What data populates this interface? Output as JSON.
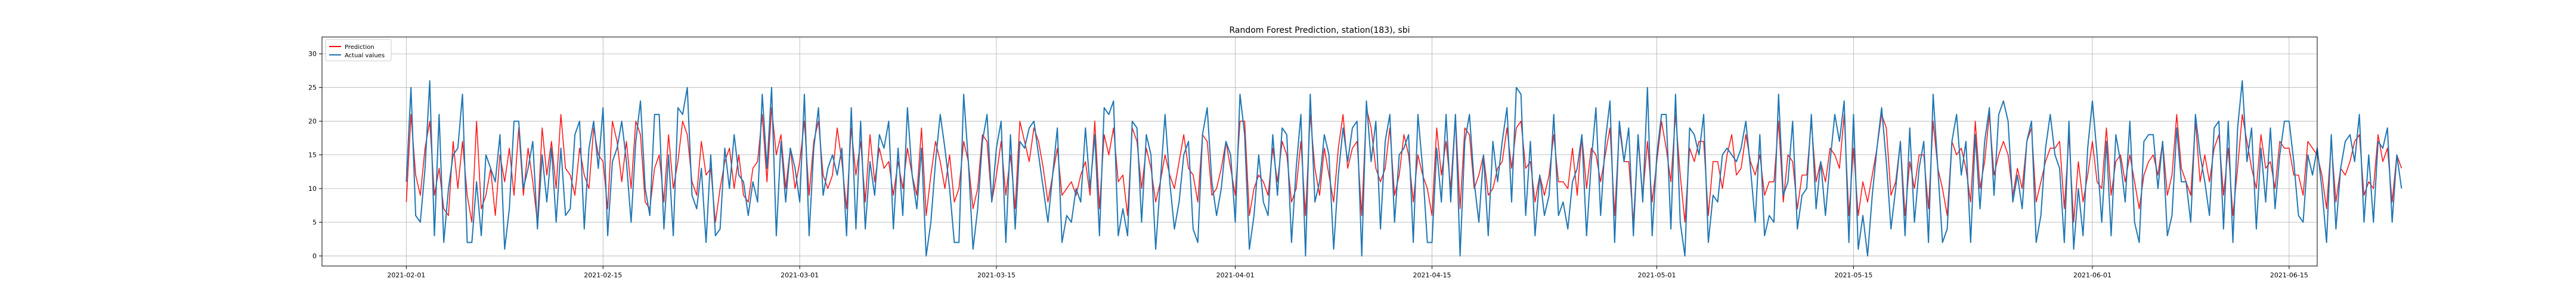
{
  "figure": {
    "title": "Random Forest Prediction, station(183), sbi"
  },
  "chart_data": {
    "type": "line",
    "title": "Random Forest Prediction, station(183), sbi",
    "xlabel": "",
    "ylabel": "",
    "x_range": [
      "2021-01-26",
      "2021-06-17"
    ],
    "xticks": [
      "2021-02-01",
      "2021-02-15",
      "2021-03-01",
      "2021-03-15",
      "2021-04-01",
      "2021-04-15",
      "2021-05-01",
      "2021-05-15",
      "2021-06-01",
      "2021-06-15"
    ],
    "ylim": [
      -1.5,
      32.5
    ],
    "yticks": [
      0,
      5,
      10,
      15,
      20,
      25,
      30
    ],
    "grid": true,
    "legend": "upper-left",
    "sampling": "every 8 hours",
    "start": "2021-02-01",
    "series": [
      {
        "name": "Prediction",
        "color": "#ff0000",
        "values": [
          8,
          21,
          12,
          9,
          16,
          20,
          9,
          13,
          7,
          6,
          17,
          10,
          17,
          9,
          5,
          20,
          7,
          9,
          13,
          6,
          15,
          11,
          16,
          9,
          19,
          9,
          16,
          11,
          5,
          19,
          12,
          17,
          10,
          21,
          13,
          12,
          9,
          16,
          12,
          10,
          19,
          15,
          14,
          7,
          20,
          17,
          11,
          17,
          10,
          20,
          18,
          8,
          7,
          13,
          15,
          8,
          18,
          10,
          14,
          20,
          18,
          11,
          9,
          17,
          12,
          13,
          5,
          10,
          14,
          16,
          10,
          15,
          9,
          8,
          13,
          14,
          21,
          11,
          22,
          15,
          18,
          10,
          16,
          10,
          14,
          20,
          9,
          17,
          20,
          12,
          10,
          12,
          19,
          14,
          7,
          19,
          12,
          17,
          8,
          18,
          11,
          16,
          13,
          14,
          9,
          14,
          10,
          16,
          12,
          9,
          19,
          6,
          12,
          17,
          14,
          10,
          15,
          8,
          10,
          17,
          14,
          7,
          10,
          18,
          17,
          8,
          12,
          17,
          9,
          15,
          7,
          20,
          17,
          14,
          19,
          17,
          13,
          8,
          12,
          16,
          9,
          10,
          11,
          9,
          12,
          14,
          9,
          20,
          7,
          18,
          15,
          19,
          11,
          12,
          6,
          19,
          17,
          10,
          16,
          13,
          8,
          11,
          15,
          12,
          10,
          14,
          18,
          13,
          12,
          8,
          18,
          17,
          9,
          10,
          13,
          17,
          13,
          9,
          20,
          20,
          6,
          10,
          12,
          11,
          9,
          16,
          11,
          17,
          15,
          8,
          10,
          17,
          6,
          21,
          13,
          9,
          16,
          12,
          8,
          16,
          21,
          13,
          16,
          17,
          6,
          22,
          19,
          13,
          11,
          13,
          19,
          9,
          12,
          18,
          15,
          8,
          15,
          12,
          10,
          6,
          19,
          12,
          17,
          10,
          21,
          7,
          19,
          18,
          10,
          12,
          15,
          9,
          10,
          13,
          14,
          19,
          13,
          19,
          20,
          13,
          14,
          8,
          12,
          9,
          12,
          18,
          11,
          11,
          10,
          16,
          9,
          18,
          10,
          16,
          15,
          11,
          15,
          19,
          6,
          19,
          14,
          14,
          5,
          17,
          9,
          17,
          8,
          14,
          20,
          16,
          11,
          21,
          12,
          5,
          16,
          14,
          17,
          17,
          6,
          14,
          14,
          10,
          15,
          18,
          12,
          13,
          18,
          14,
          12,
          15,
          9,
          11,
          11,
          20,
          8,
          15,
          14,
          7,
          12,
          12,
          20,
          11,
          14,
          11,
          16,
          15,
          13,
          21,
          6,
          16,
          6,
          11,
          8,
          12,
          16,
          21,
          19,
          9,
          11,
          17,
          6,
          14,
          10,
          15,
          15,
          7,
          20,
          13,
          10,
          6,
          17,
          15,
          16,
          13,
          8,
          20,
          10,
          14,
          21,
          12,
          15,
          17,
          15,
          9,
          13,
          10,
          17,
          19,
          8,
          11,
          14,
          16,
          16,
          17,
          7,
          18,
          5,
          14,
          8,
          12,
          17,
          11,
          10,
          19,
          9,
          14,
          15,
          11,
          15,
          11,
          7,
          12,
          14,
          15,
          12,
          17,
          9,
          12,
          21,
          13,
          11,
          9,
          20,
          11,
          15,
          11,
          16,
          18,
          9,
          16,
          6,
          13,
          21,
          17,
          13,
          10,
          18,
          13,
          14,
          10,
          17,
          16,
          16,
          12,
          12,
          9,
          17,
          16,
          15,
          12,
          7,
          17,
          8,
          13,
          12,
          14,
          17,
          18,
          9,
          11,
          10,
          18,
          14,
          16,
          8,
          15,
          13
        ]
      },
      {
        "name": "Actual values",
        "color": "#1f77b4",
        "values": [
          11,
          25,
          6,
          5,
          13,
          26,
          3,
          21,
          2,
          10,
          15,
          16,
          24,
          2,
          2,
          11,
          3,
          15,
          13,
          11,
          18,
          1,
          7,
          20,
          20,
          10,
          13,
          17,
          4,
          15,
          8,
          16,
          5,
          16,
          6,
          7,
          18,
          20,
          4,
          16,
          20,
          13,
          22,
          3,
          14,
          16,
          20,
          14,
          5,
          17,
          23,
          10,
          6,
          21,
          21,
          4,
          15,
          3,
          22,
          21,
          25,
          9,
          7,
          13,
          2,
          15,
          3,
          4,
          16,
          10,
          18,
          12,
          11,
          6,
          11,
          8,
          24,
          13,
          25,
          3,
          17,
          8,
          16,
          13,
          8,
          24,
          3,
          16,
          22,
          9,
          13,
          15,
          12,
          16,
          3,
          22,
          4,
          20,
          4,
          14,
          9,
          18,
          16,
          20,
          4,
          16,
          6,
          22,
          12,
          7,
          16,
          0,
          5,
          14,
          21,
          16,
          10,
          2,
          2,
          24,
          14,
          1,
          7,
          17,
          21,
          8,
          16,
          20,
          2,
          18,
          4,
          17,
          16,
          19,
          20,
          15,
          10,
          5,
          12,
          19,
          2,
          6,
          5,
          10,
          8,
          19,
          10,
          18,
          3,
          22,
          21,
          23,
          3,
          7,
          3,
          20,
          19,
          5,
          18,
          15,
          1,
          11,
          21,
          11,
          4,
          8,
          15,
          17,
          4,
          2,
          18,
          22,
          11,
          6,
          10,
          17,
          15,
          5,
          24,
          18,
          1,
          6,
          15,
          8,
          6,
          18,
          9,
          19,
          18,
          2,
          13,
          21,
          0,
          24,
          8,
          11,
          18,
          15,
          1,
          12,
          19,
          14,
          19,
          20,
          0,
          23,
          14,
          20,
          4,
          17,
          21,
          5,
          15,
          16,
          18,
          2,
          21,
          13,
          2,
          2,
          16,
          8,
          21,
          8,
          21,
          0,
          17,
          21,
          11,
          5,
          15,
          3,
          17,
          11,
          17,
          22,
          8,
          25,
          24,
          6,
          17,
          3,
          12,
          6,
          9,
          21,
          6,
          8,
          4,
          11,
          13,
          18,
          3,
          14,
          22,
          6,
          17,
          23,
          2,
          20,
          14,
          19,
          3,
          18,
          8,
          25,
          3,
          15,
          21,
          21,
          4,
          24,
          5,
          0,
          19,
          18,
          15,
          21,
          2,
          9,
          8,
          15,
          16,
          15,
          14,
          16,
          20,
          13,
          5,
          18,
          3,
          6,
          5,
          24,
          9,
          11,
          20,
          4,
          9,
          10,
          21,
          7,
          14,
          6,
          14,
          21,
          17,
          23,
          2,
          21,
          1,
          6,
          0,
          9,
          16,
          22,
          14,
          4,
          10,
          17,
          3,
          19,
          5,
          13,
          17,
          2,
          24,
          13,
          2,
          4,
          17,
          21,
          12,
          17,
          2,
          18,
          7,
          17,
          22,
          9,
          21,
          23,
          20,
          8,
          12,
          7,
          17,
          20,
          2,
          6,
          16,
          21,
          15,
          13,
          2,
          20,
          1,
          10,
          3,
          16,
          23,
          15,
          5,
          17,
          3,
          18,
          14,
          8,
          20,
          5,
          2,
          17,
          18,
          18,
          10,
          17,
          3,
          6,
          19,
          11,
          11,
          5,
          21,
          15,
          11,
          6,
          19,
          20,
          4,
          20,
          2,
          19,
          26,
          14,
          19,
          4,
          16,
          8,
          19,
          7,
          15,
          20,
          20,
          14,
          6,
          5,
          15,
          12,
          16,
          10,
          2,
          18,
          4,
          13,
          17,
          18,
          14,
          21,
          5,
          15,
          5,
          17,
          16,
          19,
          5,
          15,
          10
        ]
      }
    ]
  }
}
